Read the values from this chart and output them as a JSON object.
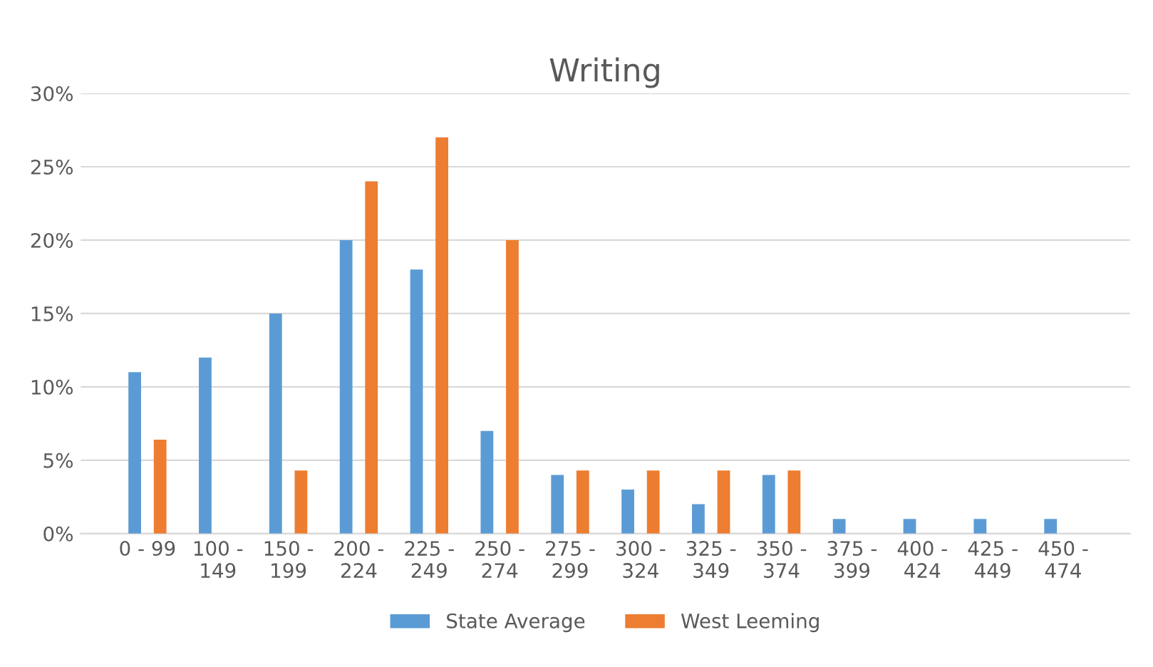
{
  "chart_data": {
    "type": "bar",
    "title": "Writing",
    "categories": [
      "0 - 99",
      "100 -\n149",
      "150 -\n199",
      "200 -\n224",
      "225 -\n249",
      "250 -\n274",
      "275 -\n299",
      "300 -\n324",
      "325 -\n349",
      "350 -\n374",
      "375 -\n399",
      "400 -\n424",
      "425 -\n449",
      "450 -\n474"
    ],
    "series": [
      {
        "name": "State Average",
        "color": "#5b9bd5",
        "values": [
          11,
          12,
          15,
          20,
          18,
          7,
          4,
          3,
          2,
          4,
          1,
          1,
          1,
          1
        ]
      },
      {
        "name": "West Leeming",
        "color": "#ed7d31",
        "values": [
          6.4,
          0,
          4.3,
          24,
          27,
          20,
          4.3,
          4.3,
          4.3,
          4.3,
          0,
          0,
          0,
          0
        ]
      }
    ],
    "ylim": [
      0,
      30
    ],
    "yticks": [
      {
        "value": 0,
        "label": "0%"
      },
      {
        "value": 5,
        "label": "5%"
      },
      {
        "value": 10,
        "label": "10%"
      },
      {
        "value": 15,
        "label": "15%"
      },
      {
        "value": 20,
        "label": "20%"
      },
      {
        "value": 25,
        "label": "25%"
      },
      {
        "value": 30,
        "label": "30%"
      }
    ],
    "grid": "y",
    "legend": "bottom"
  }
}
